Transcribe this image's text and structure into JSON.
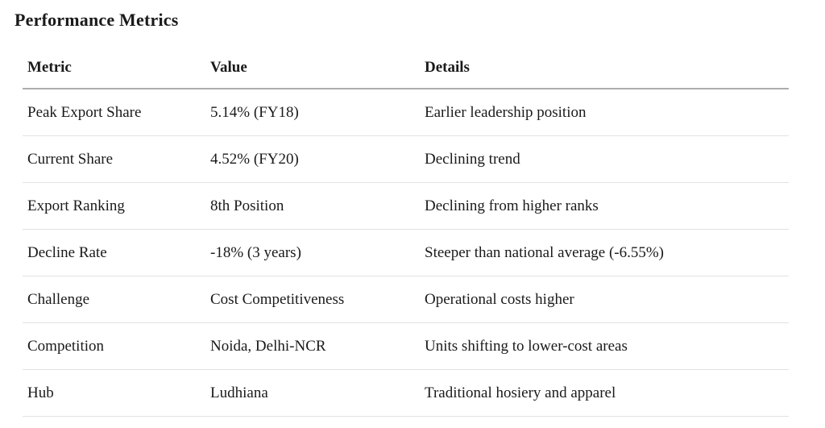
{
  "page": {
    "title": "Performance Metrics"
  },
  "table": {
    "columns": [
      {
        "key": "metric",
        "label": "Metric"
      },
      {
        "key": "value",
        "label": "Value"
      },
      {
        "key": "details",
        "label": "Details"
      }
    ],
    "rows": [
      {
        "metric": "Peak Export Share",
        "value": "5.14% (FY18)",
        "details": "Earlier leadership position"
      },
      {
        "metric": "Current Share",
        "value": "4.52% (FY20)",
        "details": "Declining trend"
      },
      {
        "metric": "Export Ranking",
        "value": "8th Position",
        "details": "Declining from higher ranks"
      },
      {
        "metric": "Decline Rate",
        "value": "-18% (3 years)",
        "details": "Steeper than national average (-6.55%)"
      },
      {
        "metric": "Challenge",
        "value": "Cost Competitiveness",
        "details": "Operational costs higher"
      },
      {
        "metric": "Competition",
        "value": "Noida, Delhi-NCR",
        "details": "Units shifting to lower-cost areas"
      },
      {
        "metric": "Hub",
        "value": "Ludhiana",
        "details": "Traditional hosiery and apparel"
      }
    ]
  },
  "colors": {
    "text": "#1a1a1a",
    "header_border": "#adadad",
    "row_border": "#e2e2e2",
    "background": "#ffffff"
  }
}
